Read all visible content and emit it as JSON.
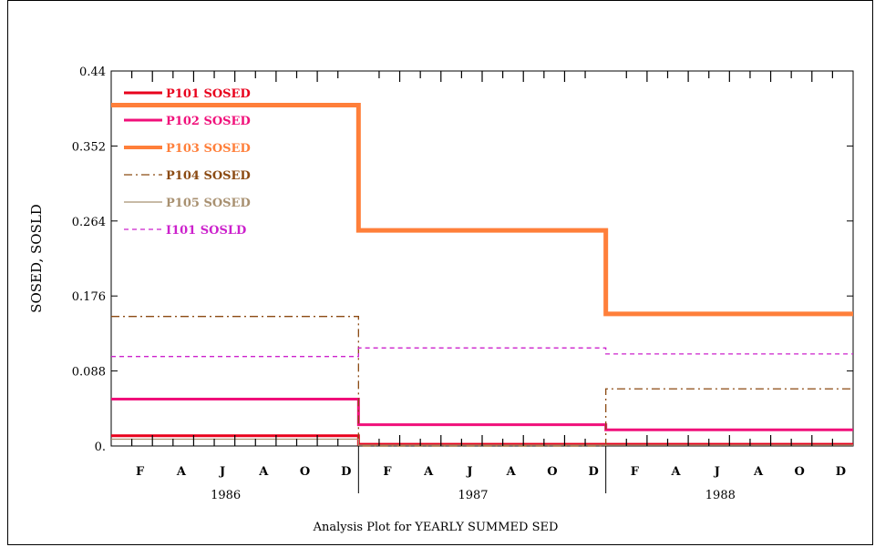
{
  "chart_data": {
    "type": "line",
    "step": true,
    "xlabel": "Analysis Plot for YEARLY SUMMED SED",
    "ylabel": "SOSED, SOSLD",
    "ylim": [
      0,
      0.44
    ],
    "yticks": [
      "0.",
      "0.088",
      "0.176",
      "0.264",
      "0.352",
      "0.44"
    ],
    "ytick_values": [
      0,
      0.088,
      0.176,
      0.264,
      0.352,
      0.44
    ],
    "years": [
      "1986",
      "1987",
      "1988"
    ],
    "months": [
      "F",
      "A",
      "J",
      "A",
      "O",
      "D"
    ],
    "legend_position": "top-left",
    "series": [
      {
        "name": "P101 SOSED",
        "color": "#e8001c",
        "style": "solid",
        "width": 3,
        "values": [
          0.012,
          0.002,
          0.002
        ]
      },
      {
        "name": "P102 SOSED",
        "color": "#f0107a",
        "style": "solid",
        "width": 3,
        "values": [
          0.055,
          0.025,
          0.019
        ]
      },
      {
        "name": "P103 SOSED",
        "color": "#ff7f3a",
        "style": "solid",
        "width": 5,
        "values": [
          0.4,
          0.253,
          0.155
        ]
      },
      {
        "name": "P104 SOSED",
        "color": "#8b4a12",
        "style": "dashdot",
        "width": 1.3,
        "values": [
          0.152,
          0.0,
          0.067
        ]
      },
      {
        "name": "P105 SOSED",
        "color": "#a89070",
        "style": "solid",
        "width": 1.3,
        "values": [
          0.008,
          0.001,
          0.001
        ]
      },
      {
        "name": "I101 SOSLD",
        "color": "#cc22cc",
        "style": "dashed",
        "width": 1.3,
        "values": [
          0.105,
          0.115,
          0.108
        ]
      }
    ]
  }
}
